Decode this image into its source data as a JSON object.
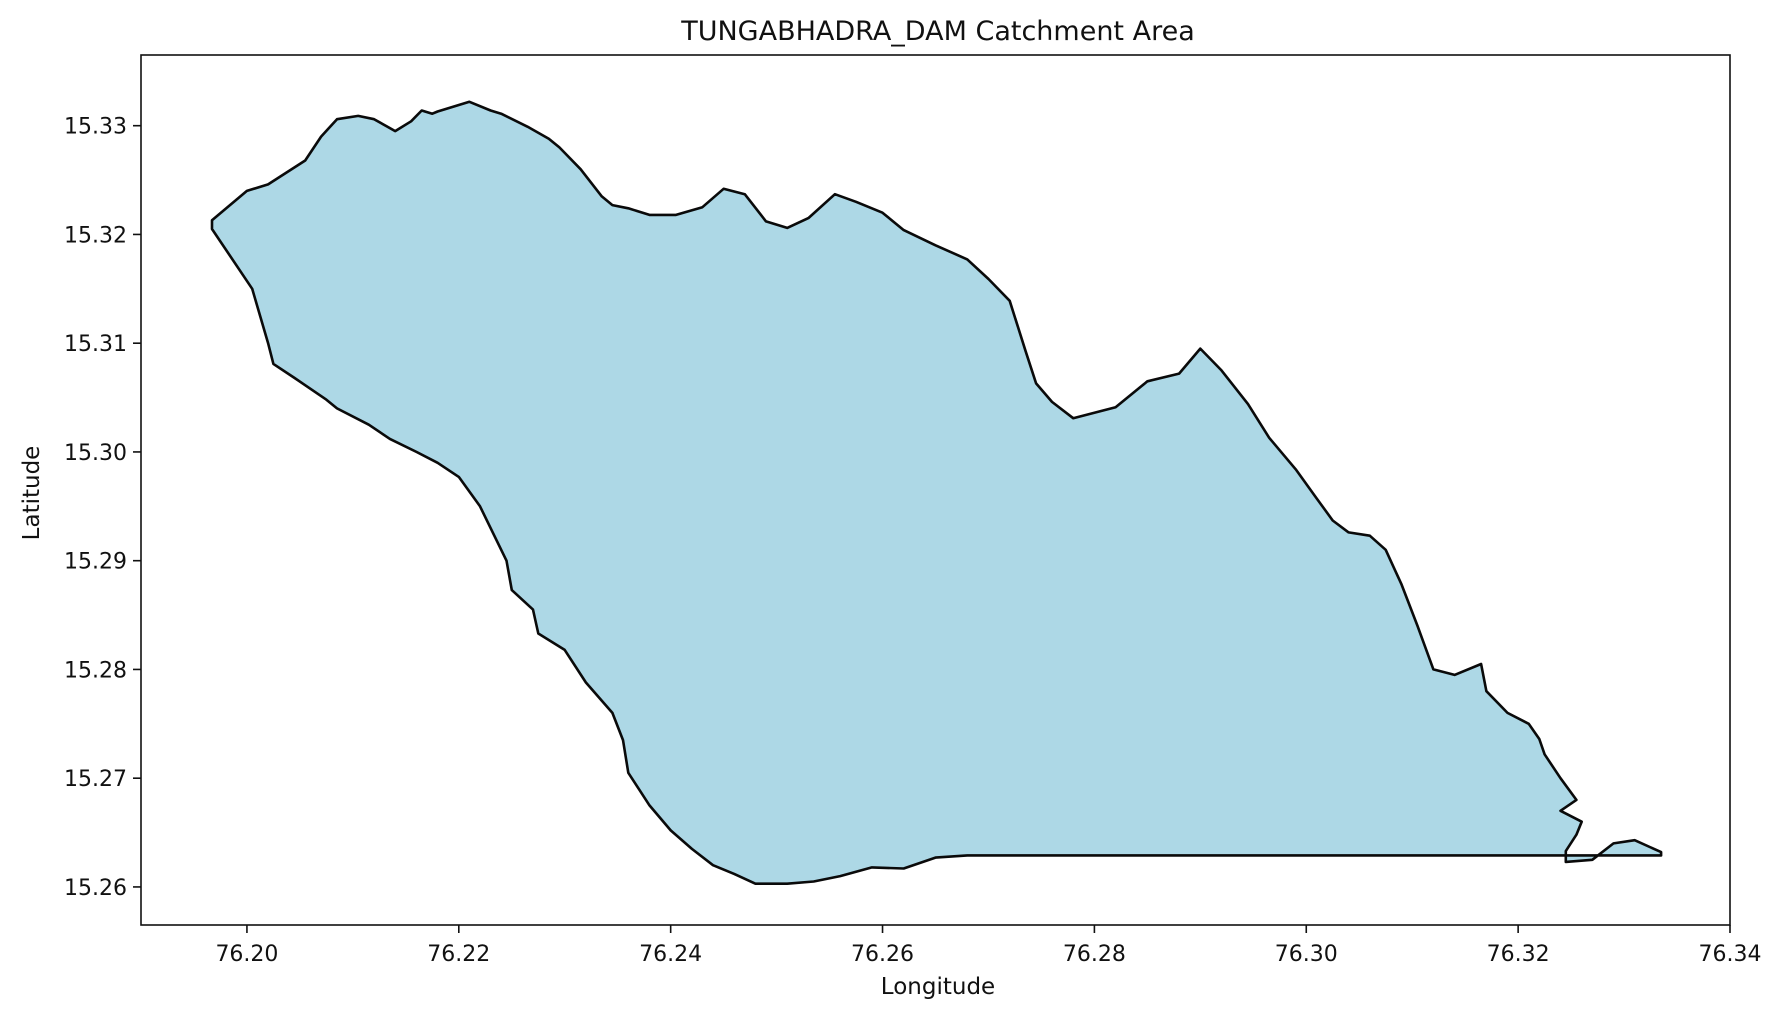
{
  "chart_data": {
    "type": "map",
    "title": "TUNGABHADRA_DAM Catchment Area",
    "xlabel": "Longitude",
    "ylabel": "Latitude",
    "xlim": [
      76.19,
      76.34
    ],
    "ylim": [
      15.2565,
      15.3365
    ],
    "xticks": [
      76.2,
      76.22,
      76.24,
      76.26,
      76.28,
      76.3,
      76.32,
      76.34
    ],
    "xtick_labels": [
      "76.20",
      "76.22",
      "76.24",
      "76.26",
      "76.28",
      "76.30",
      "76.32",
      "76.34"
    ],
    "yticks": [
      15.26,
      15.27,
      15.28,
      15.29,
      15.3,
      15.31,
      15.32,
      15.33
    ],
    "ytick_labels": [
      "15.26",
      "15.27",
      "15.28",
      "15.29",
      "15.30",
      "15.31",
      "15.32",
      "15.33"
    ],
    "grid": false,
    "fill_color": "#add8e6",
    "edge_color": "#000000",
    "polygon": {
      "name": "TUNGABHADRA_DAM",
      "lon": [
        76.1967,
        76.2,
        76.202,
        76.2055,
        76.207,
        76.2085,
        76.2105,
        76.212,
        76.214,
        76.2155,
        76.2165,
        76.2175,
        76.218,
        76.221,
        76.223,
        76.224,
        76.2265,
        76.2285,
        76.2295,
        76.2315,
        76.2335,
        76.2345,
        76.236,
        76.238,
        76.2405,
        76.243,
        76.245,
        76.247,
        76.249,
        76.251,
        76.253,
        76.2555,
        76.2575,
        76.26,
        76.262,
        76.265,
        76.268,
        76.27,
        76.272,
        76.2735,
        76.2745,
        76.276,
        76.278,
        76.28,
        76.282,
        76.285,
        76.288,
        76.29,
        76.292,
        76.2945,
        76.2965,
        76.299,
        76.301,
        76.3025,
        76.304,
        76.306,
        76.3075,
        76.309,
        76.3105,
        76.312,
        76.314,
        76.3165,
        76.317,
        76.319,
        76.321,
        76.322,
        76.3225,
        76.324,
        76.3255,
        76.324,
        76.326,
        76.3255,
        76.3245,
        76.3245,
        76.327,
        76.329,
        76.331,
        76.3335,
        76.3335,
        76.306,
        76.28,
        76.268,
        76.265,
        76.262,
        76.259,
        76.256,
        76.2535,
        76.251,
        76.248,
        76.246,
        76.244,
        76.242,
        76.24,
        76.238,
        76.237,
        76.236,
        76.2355,
        76.2345,
        76.232,
        76.23,
        76.2275,
        76.227,
        76.225,
        76.2245,
        76.223,
        76.222,
        76.22,
        76.218,
        76.216,
        76.2135,
        76.2115,
        76.2085,
        76.2075,
        76.2045,
        76.2025,
        76.202,
        76.2005,
        76.1967
      ],
      "lat": [
        15.3213,
        15.324,
        15.3246,
        15.3268,
        15.329,
        15.3306,
        15.3309,
        15.3306,
        15.3295,
        15.3304,
        15.3314,
        15.3311,
        15.3313,
        15.3322,
        15.3314,
        15.3311,
        15.3299,
        15.3288,
        15.328,
        15.326,
        15.3235,
        15.3227,
        15.3224,
        15.3218,
        15.3218,
        15.3225,
        15.3242,
        15.3237,
        15.3212,
        15.3206,
        15.3215,
        15.3237,
        15.323,
        15.322,
        15.3204,
        15.319,
        15.3177,
        15.3159,
        15.3139,
        15.3093,
        15.3063,
        15.3046,
        15.3031,
        15.3036,
        15.3041,
        15.3065,
        15.3072,
        15.3095,
        15.3075,
        15.3044,
        15.3013,
        15.2984,
        15.2957,
        15.2937,
        15.2926,
        15.2923,
        15.291,
        15.2878,
        15.284,
        15.28,
        15.2795,
        15.2805,
        15.278,
        15.276,
        15.275,
        15.2736,
        15.2722,
        15.27,
        15.268,
        15.267,
        15.266,
        15.2648,
        15.2633,
        15.2623,
        15.2625,
        15.264,
        15.2643,
        15.2632,
        15.2629,
        15.2629,
        15.2629,
        15.2629,
        15.2627,
        15.2617,
        15.2618,
        15.261,
        15.2605,
        15.2603,
        15.2603,
        15.2612,
        15.262,
        15.2635,
        15.2652,
        15.2675,
        15.269,
        15.2705,
        15.2735,
        15.276,
        15.2788,
        15.2818,
        15.2833,
        15.2855,
        15.2873,
        15.29,
        15.293,
        15.295,
        15.2977,
        15.299,
        15.3,
        15.3012,
        15.3025,
        15.304,
        15.3048,
        15.3068,
        15.3081,
        15.31,
        15.315,
        15.3205
      ]
    }
  }
}
